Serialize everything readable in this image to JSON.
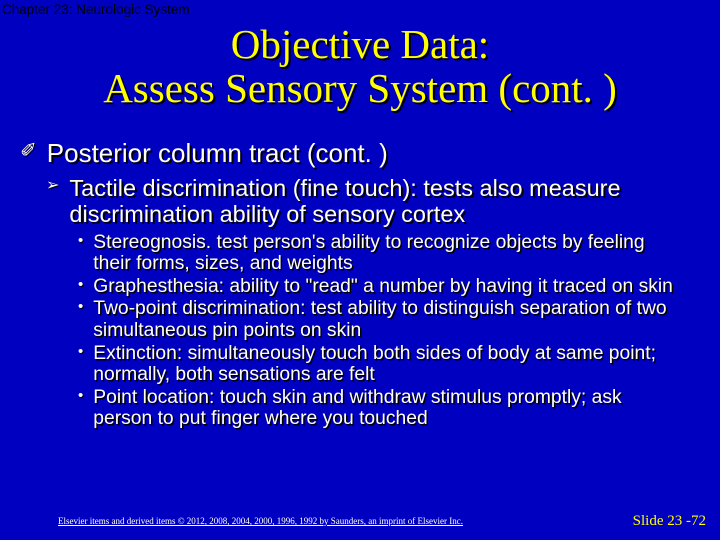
{
  "colors": {
    "background": "#0000c0",
    "title": "#ffff00",
    "body_text": "#ffffff",
    "shadow": "#000000",
    "slide_num": "#ffff00",
    "chapter_header": "#000000"
  },
  "fonts": {
    "title_family": "Times New Roman",
    "body_family": "Arial",
    "title_size": 41,
    "level1_size": 26,
    "level2_size": 23.5,
    "level3_size": 19.3,
    "footer_size": 9,
    "slide_num_size": 15
  },
  "chapter": "Chapter 23: Neurologic System",
  "title_line1": "Objective Data:",
  "title_line2": "Assess Sensory System (cont. )",
  "level1_bullet_glyph": "✐",
  "level2_bullet_glyph": "➢",
  "level3_bullet_glyph": "•",
  "level1_text": "Posterior column tract  (cont. )",
  "level2_text": "Tactile discrimination (fine touch): tests also measure discrimination ability of sensory cortex",
  "level3_items": [
    "Stereognosis. test person's ability to recognize objects by feeling their forms, sizes, and weights",
    "Graphesthesia: ability to \"read\" a number by having it traced on skin",
    "Two-point discrimination: test ability to distinguish separation of two simultaneous pin points on skin",
    "Extinction: simultaneously touch both sides of body at same point; normally, both sensations are felt",
    "Point location: touch skin and withdraw stimulus promptly; ask person to put finger where you touched"
  ],
  "footer_copyright": "Elsevier items and derived items © 2012, 2008, 2004, 2000, 1996, 1992 by Saunders, an imprint of Elsevier Inc.",
  "slide_number": "Slide 23 -72"
}
